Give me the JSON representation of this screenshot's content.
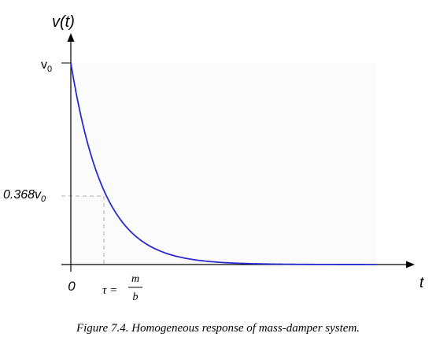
{
  "chart_data": {
    "type": "line",
    "title": "",
    "ylabel": "v(t)",
    "ylabel_parts": {
      "name": "v",
      "arg": "(t)"
    },
    "xlabel": "t",
    "x_origin_label": "0",
    "tau_label": {
      "lhs": "τ =",
      "num": "m",
      "den": "b"
    },
    "y_top_label": {
      "base": "v",
      "sub": "0"
    },
    "y_tau_label": {
      "coef": "0.368v",
      "sub": "0"
    },
    "tau_fraction": 0.368,
    "tau_ticks_span": 9.8,
    "shading": "plot area shaded light gray",
    "series": [
      {
        "color": "#2a2ad0",
        "function": "v0 * exp(-t/tau)"
      }
    ],
    "axis_color": "#000000",
    "guide_color": "#b0b0b0",
    "background": "#fbfbfb"
  },
  "caption": "Figure 7.4.  Homogeneous response of mass-damper system."
}
